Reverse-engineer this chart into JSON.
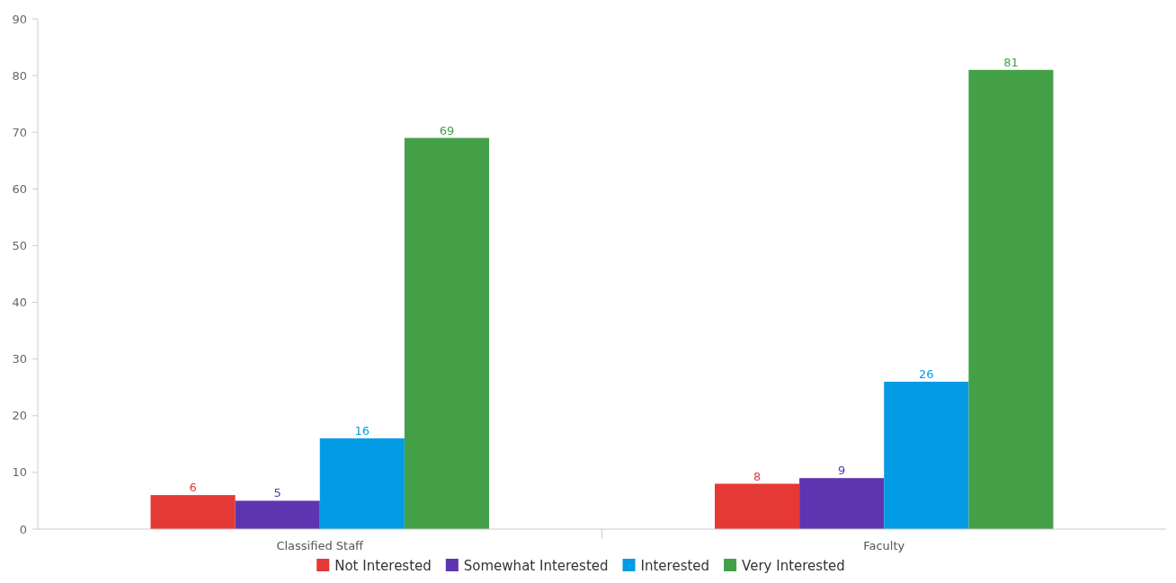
{
  "chart_data": {
    "type": "bar",
    "categories": [
      "Classified Staff",
      "Faculty"
    ],
    "series": [
      {
        "name": "Not Interested",
        "color": "#e53935",
        "values": [
          6,
          8
        ]
      },
      {
        "name": "Somewhat Interested",
        "color": "#5e35b1",
        "values": [
          5,
          9
        ]
      },
      {
        "name": "Interested",
        "color": "#039be5",
        "values": [
          16,
          26
        ]
      },
      {
        "name": "Very Interested",
        "color": "#43a047",
        "values": [
          69,
          81
        ]
      }
    ],
    "ylim": [
      0,
      90
    ],
    "yticks": [
      0,
      10,
      20,
      30,
      40,
      50,
      60,
      70,
      80,
      90
    ],
    "data_labels": true,
    "legend": "bottom",
    "grid": false
  }
}
